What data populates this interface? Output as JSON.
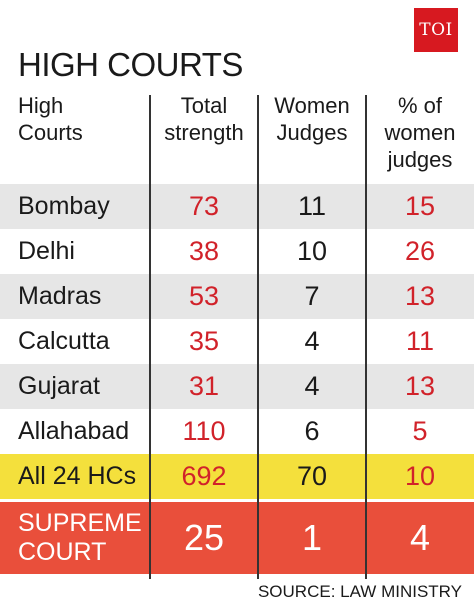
{
  "logo": "TOI",
  "title": "HIGH COURTS",
  "columns": {
    "c1": [
      "High",
      "Courts"
    ],
    "c2": [
      "Total",
      "strength"
    ],
    "c3": [
      "Women",
      "Judges"
    ],
    "c4": [
      "% of",
      "women",
      "judges"
    ]
  },
  "rows": [
    {
      "name": "Bombay",
      "total": "73",
      "women": "11",
      "pct": "15"
    },
    {
      "name": "Delhi",
      "total": "38",
      "women": "10",
      "pct": "26"
    },
    {
      "name": "Madras",
      "total": "53",
      "women": "7",
      "pct": "13"
    },
    {
      "name": "Calcutta",
      "total": "35",
      "women": "4",
      "pct": "11"
    },
    {
      "name": "Gujarat",
      "total": "31",
      "women": "4",
      "pct": "13"
    },
    {
      "name": "Allahabad",
      "total": "110",
      "women": "6",
      "pct": "5"
    },
    {
      "name": "All 24 HCs",
      "total": "692",
      "women": "70",
      "pct": "10"
    }
  ],
  "supreme": {
    "name": [
      "SUPREME",
      "COURT"
    ],
    "total": "25",
    "women": "1",
    "pct": "4"
  },
  "source": "SOURCE: LAW MINISTRY",
  "colors": {
    "logo": "#d71920",
    "value_red": "#d1222a",
    "row_grey": "#e6e6e6",
    "row_yellow": "#f4e03c",
    "row_orange": "#e94f3b"
  },
  "chart_data": {
    "type": "table",
    "title": "HIGH COURTS",
    "headers": [
      "High Courts",
      "Total strength",
      "Women Judges",
      "% of women judges"
    ],
    "rows": [
      [
        "Bombay",
        73,
        11,
        15
      ],
      [
        "Delhi",
        38,
        10,
        26
      ],
      [
        "Madras",
        53,
        7,
        13
      ],
      [
        "Calcutta",
        35,
        4,
        11
      ],
      [
        "Gujarat",
        31,
        4,
        13
      ],
      [
        "Allahabad",
        110,
        6,
        5
      ],
      [
        "All 24 HCs",
        692,
        70,
        10
      ],
      [
        "SUPREME COURT",
        25,
        1,
        4
      ]
    ],
    "source": "SOURCE: LAW MINISTRY"
  }
}
